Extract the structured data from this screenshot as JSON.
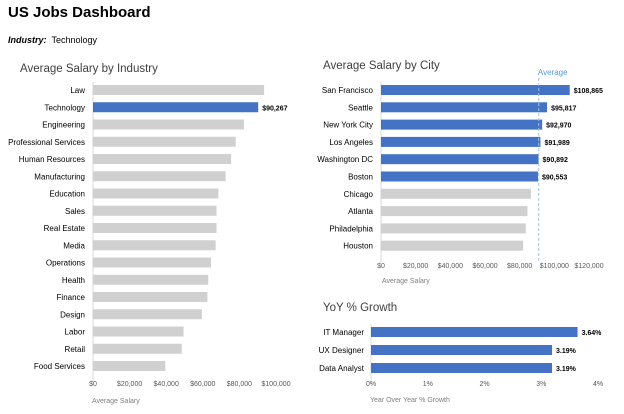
{
  "dashboard": {
    "title": "US Jobs Dashboard",
    "filter_label": "Industry:",
    "filter_value": "Technology"
  },
  "colors": {
    "highlight": "#4472C4",
    "muted": "#D0D0D0",
    "avg_line": "#9DC3E6"
  },
  "chart_data": [
    {
      "type": "bar",
      "title": "Average Salary by Industry",
      "xlabel": "Average Salary",
      "categories": [
        "Law",
        "Technology",
        "Engineering",
        "Professional Services",
        "Human Resources",
        "Manufacturing",
        "Education",
        "Sales",
        "Real Estate",
        "Media",
        "Operations",
        "Health",
        "Finance",
        "Design",
        "Labor",
        "Retail",
        "Food Services"
      ],
      "values": [
        93500,
        90267,
        82500,
        78000,
        75500,
        72500,
        68500,
        67500,
        67500,
        67000,
        64500,
        63000,
        62500,
        59500,
        49500,
        48500,
        39500
      ],
      "highlight": [
        "Technology"
      ],
      "data_labels": {
        "Technology": "$90,267"
      },
      "ticks": [
        0,
        20000,
        40000,
        60000,
        80000,
        100000
      ],
      "tick_labels": [
        "$0",
        "$20,000",
        "$40,000",
        "$60,000",
        "$80,000",
        "$100,000"
      ],
      "xlim": [
        0,
        100000
      ]
    },
    {
      "type": "bar",
      "title": "Average Salary by City",
      "xlabel": "Average Salary",
      "categories": [
        "San Francisco",
        "Seattle",
        "New York City",
        "Los Angeles",
        "Washington DC",
        "Boston",
        "Chicago",
        "Atlanta",
        "Philadelphia",
        "Houston"
      ],
      "values": [
        108865,
        95817,
        92970,
        91989,
        90892,
        90553,
        86500,
        84500,
        83500,
        82000
      ],
      "highlight": [
        "San Francisco",
        "Seattle",
        "New York City",
        "Los Angeles",
        "Washington DC",
        "Boston"
      ],
      "data_labels": {
        "San Francisco": "$108,865",
        "Seattle": "$95,817",
        "New York City": "$92,970",
        "Los Angeles": "$91,989",
        "Washington DC": "$90,892",
        "Boston": "$90,553"
      },
      "average_label": "Average",
      "average_value": 91000,
      "ticks": [
        0,
        20000,
        40000,
        60000,
        80000,
        100000,
        120000
      ],
      "tick_labels": [
        "$0",
        "$20,000",
        "$40,000",
        "$60,000",
        "$80,000",
        "$100,000",
        "$120,000"
      ],
      "xlim": [
        0,
        120000
      ]
    },
    {
      "type": "bar",
      "title": "YoY % Growth",
      "xlabel": "Year Over Year % Growth",
      "categories": [
        "IT Manager",
        "UX Designer",
        "Data Analyst"
      ],
      "values": [
        3.64,
        3.19,
        3.19
      ],
      "highlight": [
        "IT Manager",
        "UX Designer",
        "Data Analyst"
      ],
      "data_labels": {
        "IT Manager": "3.64%",
        "UX Designer": "3.19%",
        "Data Analyst": "3.19%"
      },
      "ticks": [
        0,
        1,
        2,
        3,
        4
      ],
      "tick_labels": [
        "0%",
        "1%",
        "2%",
        "3%",
        "4%"
      ],
      "xlim": [
        0,
        4
      ]
    }
  ]
}
